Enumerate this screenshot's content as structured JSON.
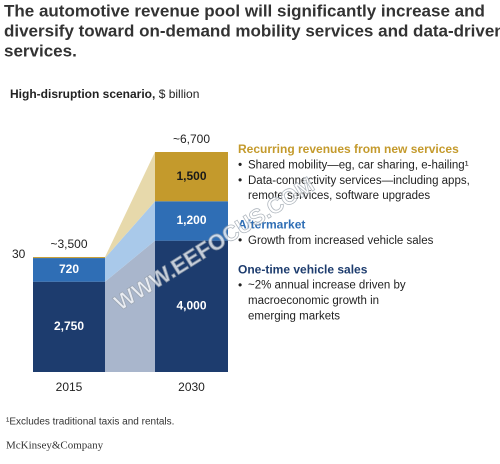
{
  "chart_data": {
    "type": "bar",
    "stacked": true,
    "title": [
      "The automotive revenue pool will significantly increase and",
      "diversify toward on-demand mobility services and data-driven",
      "services."
    ],
    "subtitle": "High-disruption scenario,",
    "unit": "$ billion",
    "categories": [
      "2015",
      "2030"
    ],
    "total_labels": [
      "~3,500",
      "~6,700"
    ],
    "series": [
      {
        "name": "One-time vehicle sales",
        "color": "#1d3c6e",
        "area_color": "#a9b6cc",
        "label_color": "#ffffff",
        "values": [
          2750,
          4000
        ],
        "value_labels": [
          "2,750",
          "4,000"
        ],
        "notes": [
          [
            "~2% annual increase driven by",
            "macroeconomic growth in",
            "emerging markets"
          ]
        ]
      },
      {
        "name": "Aftermarket",
        "color": "#2f6eb5",
        "area_color": "#a9c9ea",
        "label_color": "#ffffff",
        "values": [
          720,
          1200
        ],
        "value_labels": [
          "720",
          "1,200"
        ],
        "notes": [
          [
            "Growth from increased vehicle sales"
          ]
        ]
      },
      {
        "name": "Recurring revenues from new services",
        "color": "#c49a2c",
        "area_color": "#e7d9ab",
        "label_color": "#1a1a1a",
        "values": [
          30,
          1500
        ],
        "value_labels": [
          "30",
          "1,500"
        ],
        "notes": [
          [
            "Shared mobility—eg, car sharing, e-hailing¹"
          ],
          [
            "Data-connectivity services—including apps,",
            "remote services, software upgrades"
          ]
        ]
      }
    ],
    "footnote": "¹Excludes traditional taxis and rentals.",
    "source": "McKinsey&Company",
    "watermark": "WWW.EEFOCUS.COM"
  }
}
